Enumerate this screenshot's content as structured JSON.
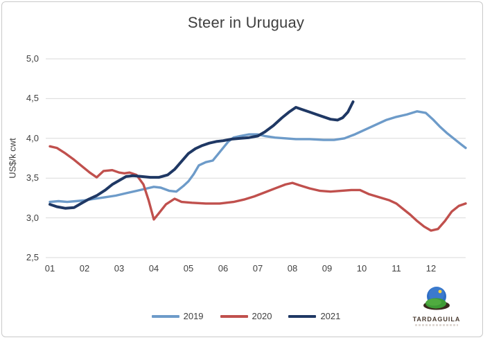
{
  "frame": {
    "border_color": "#c9c9c9",
    "background": "#ffffff"
  },
  "chart_data": {
    "type": "line",
    "title": "Steer in Uruguay",
    "ylabel": "US$/k cwt",
    "xlabel": "",
    "ylim": [
      2.5,
      5.0
    ],
    "xlim": [
      1,
      13
    ],
    "grid": "horizontal-only",
    "gridline_color": "#d9d9d9",
    "axis_text_color": "#404040",
    "title_color": "#3f3f3f",
    "legend_position": "bottom",
    "x_unit": "month-of-year",
    "y_ticks": [
      {
        "value": 5.0,
        "label": "5,0"
      },
      {
        "value": 4.5,
        "label": "4,5"
      },
      {
        "value": 4.0,
        "label": "4,0"
      },
      {
        "value": 3.5,
        "label": "3,5"
      },
      {
        "value": 3.0,
        "label": "3,0"
      },
      {
        "value": 2.5,
        "label": "2,5"
      }
    ],
    "x_ticks": [
      {
        "value": 1,
        "label": "01"
      },
      {
        "value": 2,
        "label": "02"
      },
      {
        "value": 3,
        "label": "03"
      },
      {
        "value": 4,
        "label": "04"
      },
      {
        "value": 5,
        "label": "05"
      },
      {
        "value": 6,
        "label": "06"
      },
      {
        "value": 7,
        "label": "07"
      },
      {
        "value": 8,
        "label": "08"
      },
      {
        "value": 9,
        "label": "09"
      },
      {
        "value": 10,
        "label": "10"
      },
      {
        "value": 11,
        "label": "11"
      },
      {
        "value": 12,
        "label": "12"
      }
    ],
    "series": [
      {
        "name": "2019",
        "color": "#6d9bc9",
        "stroke_width": 3.4,
        "points": [
          [
            1.0,
            3.2
          ],
          [
            1.25,
            3.21
          ],
          [
            1.5,
            3.2
          ],
          [
            1.75,
            3.21
          ],
          [
            2.0,
            3.22
          ],
          [
            2.3,
            3.24
          ],
          [
            2.6,
            3.26
          ],
          [
            2.9,
            3.28
          ],
          [
            3.2,
            3.31
          ],
          [
            3.5,
            3.34
          ],
          [
            3.8,
            3.37
          ],
          [
            4.0,
            3.39
          ],
          [
            4.2,
            3.38
          ],
          [
            4.45,
            3.34
          ],
          [
            4.65,
            3.33
          ],
          [
            4.85,
            3.4
          ],
          [
            5.0,
            3.46
          ],
          [
            5.15,
            3.55
          ],
          [
            5.3,
            3.66
          ],
          [
            5.5,
            3.7
          ],
          [
            5.7,
            3.72
          ],
          [
            5.85,
            3.8
          ],
          [
            6.0,
            3.88
          ],
          [
            6.15,
            3.96
          ],
          [
            6.3,
            4.01
          ],
          [
            6.5,
            4.03
          ],
          [
            6.75,
            4.05
          ],
          [
            7.0,
            4.05
          ],
          [
            7.2,
            4.03
          ],
          [
            7.5,
            4.01
          ],
          [
            7.8,
            4.0
          ],
          [
            8.1,
            3.99
          ],
          [
            8.5,
            3.99
          ],
          [
            8.9,
            3.98
          ],
          [
            9.2,
            3.98
          ],
          [
            9.5,
            4.0
          ],
          [
            9.8,
            4.05
          ],
          [
            10.1,
            4.11
          ],
          [
            10.4,
            4.17
          ],
          [
            10.7,
            4.23
          ],
          [
            11.0,
            4.27
          ],
          [
            11.3,
            4.3
          ],
          [
            11.6,
            4.34
          ],
          [
            11.85,
            4.32
          ],
          [
            12.05,
            4.24
          ],
          [
            12.25,
            4.15
          ],
          [
            12.45,
            4.07
          ],
          [
            12.65,
            4.0
          ],
          [
            12.85,
            3.93
          ],
          [
            13.0,
            3.88
          ]
        ]
      },
      {
        "name": "2020",
        "color": "#c0504d",
        "stroke_width": 3.4,
        "points": [
          [
            1.0,
            3.9
          ],
          [
            1.2,
            3.88
          ],
          [
            1.45,
            3.81
          ],
          [
            1.7,
            3.73
          ],
          [
            1.95,
            3.64
          ],
          [
            2.15,
            3.57
          ],
          [
            2.35,
            3.51
          ],
          [
            2.55,
            3.59
          ],
          [
            2.8,
            3.6
          ],
          [
            3.0,
            3.57
          ],
          [
            3.15,
            3.56
          ],
          [
            3.3,
            3.57
          ],
          [
            3.5,
            3.54
          ],
          [
            3.7,
            3.42
          ],
          [
            3.85,
            3.22
          ],
          [
            4.0,
            2.98
          ],
          [
            4.15,
            3.06
          ],
          [
            4.35,
            3.17
          ],
          [
            4.6,
            3.24
          ],
          [
            4.8,
            3.2
          ],
          [
            5.1,
            3.19
          ],
          [
            5.5,
            3.18
          ],
          [
            5.9,
            3.18
          ],
          [
            6.3,
            3.2
          ],
          [
            6.6,
            3.23
          ],
          [
            6.9,
            3.27
          ],
          [
            7.2,
            3.32
          ],
          [
            7.5,
            3.37
          ],
          [
            7.8,
            3.42
          ],
          [
            8.0,
            3.44
          ],
          [
            8.2,
            3.41
          ],
          [
            8.5,
            3.37
          ],
          [
            8.8,
            3.34
          ],
          [
            9.1,
            3.33
          ],
          [
            9.4,
            3.34
          ],
          [
            9.7,
            3.35
          ],
          [
            9.95,
            3.35
          ],
          [
            10.2,
            3.3
          ],
          [
            10.5,
            3.26
          ],
          [
            10.8,
            3.22
          ],
          [
            11.0,
            3.18
          ],
          [
            11.2,
            3.11
          ],
          [
            11.4,
            3.04
          ],
          [
            11.6,
            2.96
          ],
          [
            11.8,
            2.89
          ],
          [
            12.0,
            2.84
          ],
          [
            12.2,
            2.86
          ],
          [
            12.4,
            2.96
          ],
          [
            12.6,
            3.08
          ],
          [
            12.8,
            3.15
          ],
          [
            13.0,
            3.18
          ]
        ]
      },
      {
        "name": "2021",
        "color": "#1f3864",
        "stroke_width": 4,
        "points": [
          [
            1.0,
            3.17
          ],
          [
            1.2,
            3.14
          ],
          [
            1.45,
            3.12
          ],
          [
            1.7,
            3.13
          ],
          [
            1.9,
            3.18
          ],
          [
            2.1,
            3.23
          ],
          [
            2.35,
            3.28
          ],
          [
            2.6,
            3.35
          ],
          [
            2.8,
            3.42
          ],
          [
            3.0,
            3.47
          ],
          [
            3.2,
            3.52
          ],
          [
            3.4,
            3.53
          ],
          [
            3.65,
            3.52
          ],
          [
            3.9,
            3.51
          ],
          [
            4.15,
            3.51
          ],
          [
            4.4,
            3.54
          ],
          [
            4.6,
            3.61
          ],
          [
            4.8,
            3.71
          ],
          [
            5.0,
            3.81
          ],
          [
            5.2,
            3.87
          ],
          [
            5.4,
            3.91
          ],
          [
            5.6,
            3.94
          ],
          [
            5.8,
            3.96
          ],
          [
            6.0,
            3.97
          ],
          [
            6.25,
            3.99
          ],
          [
            6.5,
            4.0
          ],
          [
            6.75,
            4.01
          ],
          [
            7.0,
            4.03
          ],
          [
            7.2,
            4.08
          ],
          [
            7.45,
            4.16
          ],
          [
            7.7,
            4.26
          ],
          [
            7.9,
            4.33
          ],
          [
            8.1,
            4.39
          ],
          [
            8.3,
            4.36
          ],
          [
            8.5,
            4.33
          ],
          [
            8.7,
            4.3
          ],
          [
            8.9,
            4.27
          ],
          [
            9.1,
            4.24
          ],
          [
            9.3,
            4.23
          ],
          [
            9.45,
            4.26
          ],
          [
            9.6,
            4.33
          ],
          [
            9.75,
            4.46
          ]
        ]
      }
    ]
  },
  "logo": {
    "text": "TARDAGUILA",
    "icon": "hill-sun-globe-icon",
    "text_color": "#4a3b30",
    "sky_color": "#2f6ec5",
    "hill_color": "#3e9b35",
    "base_color": "#3a2a1e",
    "sun_color": "#ffd43a"
  }
}
